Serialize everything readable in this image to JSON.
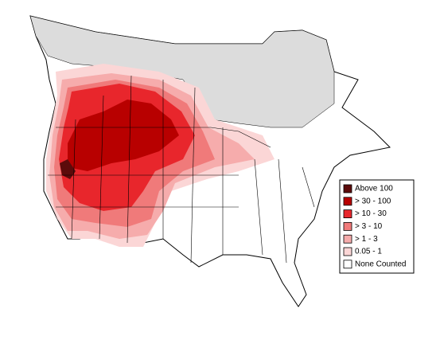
{
  "legend": {
    "items": [
      {
        "label": "Above 100",
        "color": "#5c0b0b"
      },
      {
        "label": "> 30 - 100",
        "color": "#b80000"
      },
      {
        "label": "> 10 - 30",
        "color": "#e8262c"
      },
      {
        "label": "> 3 - 10",
        "color": "#f07a7a"
      },
      {
        "label": "> 1 - 3",
        "color": "#f6acac"
      },
      {
        "label": "0.05 - 1",
        "color": "#fbd6d6"
      },
      {
        "label": "None Counted",
        "color": "#ffffff"
      }
    ]
  }
}
